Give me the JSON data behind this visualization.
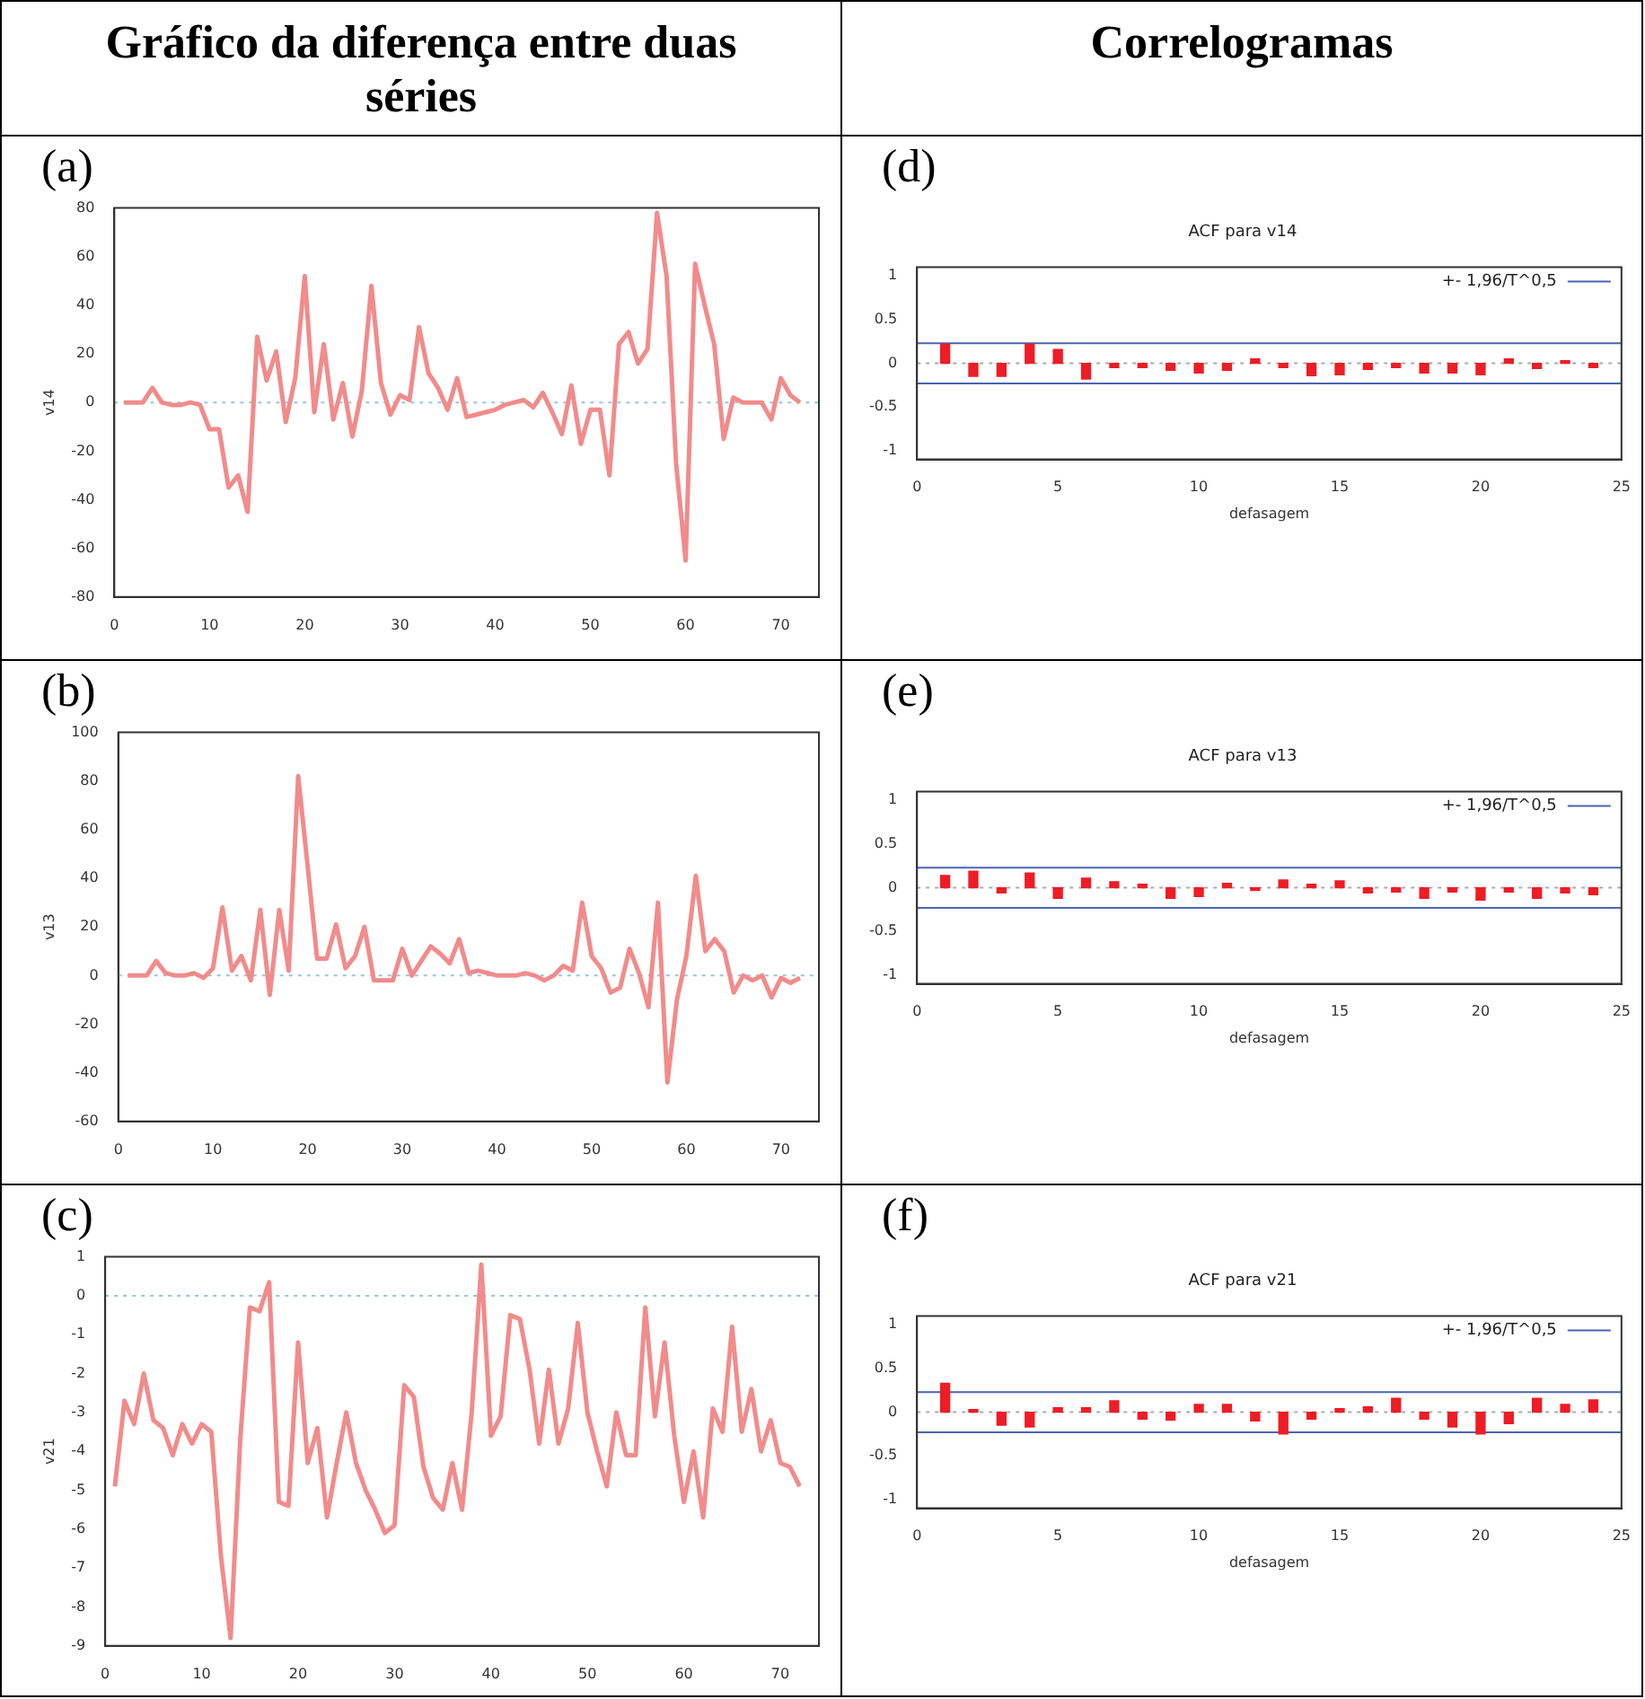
{
  "chart_data": [
    {
      "type": "line",
      "annotations": [
        "Gráfico da diferença entre duas séries",
        "(a)"
      ],
      "ylabel": "v14",
      "x": [
        1,
        2,
        3,
        4,
        5,
        6,
        7,
        8,
        9,
        10,
        11,
        12,
        13,
        14,
        15,
        16,
        17,
        18,
        19,
        20,
        21,
        22,
        23,
        24,
        25,
        26,
        27,
        28,
        29,
        30,
        31,
        32,
        33,
        34,
        35,
        36,
        37,
        38,
        39,
        40,
        41,
        42,
        43,
        44,
        45,
        46,
        47,
        48,
        49,
        50,
        51,
        52,
        53,
        54,
        55,
        56,
        57,
        58,
        59,
        60,
        61,
        62,
        63,
        64,
        65,
        66,
        67,
        68,
        69,
        70,
        71,
        72
      ],
      "color": "#f28b8b",
      "values": [
        0,
        0,
        0,
        6,
        0,
        -1,
        -1,
        0,
        -1,
        -11,
        -11,
        -35,
        -30,
        -45,
        27,
        9,
        21,
        -8,
        10,
        52,
        -4,
        24,
        -7,
        8,
        -14,
        5,
        48,
        8,
        -5,
        3,
        1,
        31,
        12,
        6,
        -3,
        10,
        -6,
        -5,
        -4,
        -3,
        -1,
        0,
        1,
        -2,
        4,
        -4,
        -13,
        7,
        -17,
        -3,
        -3,
        -30,
        24,
        29,
        16,
        22,
        78,
        52,
        -25,
        -65,
        57,
        40,
        24,
        -15,
        2,
        0,
        0,
        0,
        -7,
        10,
        3,
        0
      ],
      "xlim": [
        0,
        74
      ],
      "xticks": [
        0,
        10,
        20,
        30,
        40,
        50,
        60,
        70
      ],
      "ylim": [
        -80,
        80
      ],
      "yticks": [
        -80,
        -60,
        -40,
        -20,
        0,
        20,
        40,
        60,
        80
      ],
      "ref_lines": [
        {
          "axis": "y",
          "value": 0,
          "color": "#9cc3dd",
          "line_style": "dotted"
        }
      ]
    },
    {
      "type": "bar",
      "annotations": [
        "Correlogramas",
        "(d)"
      ],
      "title": "ACF para v14",
      "xlabel": "defasagem",
      "x": [
        1,
        2,
        3,
        4,
        5,
        6,
        7,
        8,
        9,
        10,
        11,
        12,
        13,
        14,
        15,
        16,
        17,
        18,
        19,
        20,
        21,
        22,
        23,
        24
      ],
      "color": "#ee1c25",
      "values": [
        0.22,
        -0.15,
        -0.15,
        0.22,
        0.16,
        -0.18,
        -0.05,
        -0.05,
        -0.08,
        -0.11,
        -0.08,
        0.05,
        -0.05,
        -0.14,
        -0.13,
        -0.07,
        -0.05,
        -0.11,
        -0.11,
        -0.13,
        0.05,
        -0.06,
        0.03,
        -0.05
      ],
      "xlim": [
        0,
        25
      ],
      "xticks": [
        0,
        5,
        10,
        15,
        20,
        25
      ],
      "ylim": [
        -1.1,
        1.1
      ],
      "yticks": [
        -1,
        -0.5,
        0,
        0.5,
        1
      ],
      "legend": "top right",
      "ref_lines": [
        {
          "axis": "y",
          "value": 0.23,
          "label": "+- 1,96/T^0,5",
          "color": "#4a64b0",
          "line_style": "solid"
        },
        {
          "axis": "y",
          "value": -0.23,
          "color": "#4a64b0",
          "line_style": "solid"
        },
        {
          "axis": "y",
          "value": 0,
          "color": "#aaaaaa",
          "line_style": "dotted"
        }
      ]
    },
    {
      "type": "line",
      "annotations": [
        "(b)"
      ],
      "ylabel": "v13",
      "x": [
        1,
        2,
        3,
        4,
        5,
        6,
        7,
        8,
        9,
        10,
        11,
        12,
        13,
        14,
        15,
        16,
        17,
        18,
        19,
        20,
        21,
        22,
        23,
        24,
        25,
        26,
        27,
        28,
        29,
        30,
        31,
        32,
        33,
        34,
        35,
        36,
        37,
        38,
        39,
        40,
        41,
        42,
        43,
        44,
        45,
        46,
        47,
        48,
        49,
        50,
        51,
        52,
        53,
        54,
        55,
        56,
        57,
        58,
        59,
        60,
        61,
        62,
        63,
        64,
        65,
        66,
        67,
        68,
        69,
        70,
        71,
        72
      ],
      "color": "#f28b8b",
      "values": [
        0,
        0,
        0,
        6,
        1,
        0,
        0,
        1,
        -1,
        3,
        28,
        2,
        8,
        -2,
        27,
        -8,
        27,
        2,
        82,
        45,
        7,
        7,
        21,
        3,
        8,
        20,
        -2,
        -2,
        -2,
        11,
        0,
        6,
        12,
        9,
        5,
        15,
        1,
        2,
        1,
        0,
        0,
        0,
        1,
        0,
        -2,
        0,
        4,
        2,
        30,
        8,
        3,
        -7,
        -5,
        11,
        1,
        -13,
        30,
        -44,
        -10,
        8,
        41,
        10,
        15,
        10,
        -7,
        0,
        -2,
        0,
        -9,
        -1,
        -3,
        -1
      ],
      "xlim": [
        0,
        74
      ],
      "xticks": [
        0,
        10,
        20,
        30,
        40,
        50,
        60,
        70
      ],
      "ylim": [
        -60,
        100
      ],
      "yticks": [
        -60,
        -40,
        -20,
        0,
        20,
        40,
        60,
        80,
        100
      ],
      "ref_lines": [
        {
          "axis": "y",
          "value": 0,
          "color": "#9cc3dd",
          "line_style": "dotted"
        }
      ]
    },
    {
      "type": "bar",
      "annotations": [
        "(e)"
      ],
      "title": "ACF para v13",
      "xlabel": "defasagem",
      "x": [
        1,
        2,
        3,
        4,
        5,
        6,
        7,
        8,
        9,
        10,
        11,
        12,
        13,
        14,
        15,
        16,
        17,
        18,
        19,
        20,
        21,
        22,
        23,
        24
      ],
      "color": "#ee1c25",
      "values": [
        0.14,
        0.19,
        -0.06,
        0.17,
        -0.12,
        0.11,
        0.07,
        0.04,
        -0.12,
        -0.1,
        0.05,
        -0.03,
        0.09,
        0.04,
        0.08,
        -0.06,
        -0.05,
        -0.12,
        -0.05,
        -0.14,
        -0.05,
        -0.12,
        -0.06,
        -0.08
      ],
      "xlim": [
        0,
        25
      ],
      "xticks": [
        0,
        5,
        10,
        15,
        20,
        25
      ],
      "ylim": [
        -1.1,
        1.1
      ],
      "yticks": [
        -1,
        -0.5,
        0,
        0.5,
        1
      ],
      "legend": "top right",
      "ref_lines": [
        {
          "axis": "y",
          "value": 0.23,
          "label": "+- 1,96/T^0,5",
          "color": "#4a64b0",
          "line_style": "solid"
        },
        {
          "axis": "y",
          "value": -0.23,
          "color": "#4a64b0",
          "line_style": "solid"
        },
        {
          "axis": "y",
          "value": 0,
          "color": "#aaaaaa",
          "line_style": "dotted"
        }
      ]
    },
    {
      "type": "line",
      "annotations": [
        "(c)"
      ],
      "ylabel": "v21",
      "x": [
        1,
        2,
        3,
        4,
        5,
        6,
        7,
        8,
        9,
        10,
        11,
        12,
        13,
        14,
        15,
        16,
        17,
        18,
        19,
        20,
        21,
        22,
        23,
        24,
        25,
        26,
        27,
        28,
        29,
        30,
        31,
        32,
        33,
        34,
        35,
        36,
        37,
        38,
        39,
        40,
        41,
        42,
        43,
        44,
        45,
        46,
        47,
        48,
        49,
        50,
        51,
        52,
        53,
        54,
        55,
        56,
        57,
        58,
        59,
        60,
        61,
        62,
        63,
        64,
        65,
        66,
        67,
        68,
        69,
        70,
        71,
        72
      ],
      "color": "#f28b8b",
      "values": [
        -4.9,
        -2.7,
        -3.3,
        -2.0,
        -3.2,
        -3.4,
        -4.1,
        -3.3,
        -3.8,
        -3.3,
        -3.5,
        -6.7,
        -8.8,
        -3.7,
        -0.3,
        -0.4,
        0.35,
        -5.3,
        -5.4,
        -1.2,
        -4.3,
        -3.4,
        -5.7,
        -4.3,
        -3.0,
        -4.3,
        -5.0,
        -5.5,
        -6.1,
        -5.9,
        -2.3,
        -2.6,
        -4.4,
        -5.2,
        -5.5,
        -4.3,
        -5.5,
        -3.0,
        0.8,
        -3.6,
        -3.1,
        -0.5,
        -0.6,
        -1.9,
        -3.8,
        -1.9,
        -3.8,
        -2.9,
        -0.7,
        -3.0,
        -4.0,
        -4.9,
        -3.0,
        -4.1,
        -4.1,
        -0.3,
        -3.1,
        -1.2,
        -3.6,
        -5.3,
        -4.0,
        -5.7,
        -2.9,
        -3.5,
        -0.8,
        -3.5,
        -2.4,
        -4.0,
        -3.2,
        -4.3,
        -4.4,
        -4.9
      ],
      "xlim": [
        0,
        74
      ],
      "xticks": [
        0,
        10,
        20,
        30,
        40,
        50,
        60,
        70
      ],
      "ylim": [
        -9,
        1
      ],
      "yticks": [
        -9,
        -8,
        -7,
        -6,
        -5,
        -4,
        -3,
        -2,
        -1,
        0,
        1
      ],
      "ref_lines": [
        {
          "axis": "y",
          "value": 0,
          "color": "#9cc3dd",
          "line_style": "dotted"
        }
      ]
    },
    {
      "type": "bar",
      "annotations": [
        "(f)"
      ],
      "title": "ACF para v21",
      "xlabel": "defasagem",
      "x": [
        1,
        2,
        3,
        4,
        5,
        6,
        7,
        8,
        9,
        10,
        11,
        12,
        13,
        14,
        15,
        16,
        17,
        18,
        19,
        20,
        21,
        22,
        23,
        24
      ],
      "color": "#ee1c25",
      "values": [
        0.33,
        0.03,
        -0.15,
        -0.17,
        0.05,
        0.05,
        0.13,
        -0.08,
        -0.09,
        0.09,
        0.09,
        -0.1,
        -0.25,
        -0.08,
        0.04,
        0.06,
        0.16,
        -0.08,
        -0.17,
        -0.25,
        -0.13,
        0.16,
        0.09,
        0.14
      ],
      "xlim": [
        0,
        25
      ],
      "xticks": [
        0,
        5,
        10,
        15,
        20,
        25
      ],
      "ylim": [
        -1.1,
        1.1
      ],
      "yticks": [
        -1,
        -0.5,
        0,
        0.5,
        1
      ],
      "legend": "top right",
      "ref_lines": [
        {
          "axis": "y",
          "value": 0.23,
          "label": "+- 1,96/T^0,5",
          "color": "#4a64b0",
          "line_style": "solid"
        },
        {
          "axis": "y",
          "value": -0.23,
          "color": "#4a64b0",
          "line_style": "solid"
        },
        {
          "axis": "y",
          "value": 0,
          "color": "#aaaaaa",
          "line_style": "dotted"
        }
      ]
    }
  ]
}
